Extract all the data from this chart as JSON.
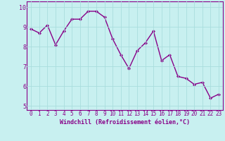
{
  "x": [
    0,
    1,
    2,
    3,
    4,
    5,
    6,
    7,
    8,
    9,
    10,
    11,
    12,
    13,
    14,
    15,
    16,
    17,
    18,
    19,
    20,
    21,
    22,
    23
  ],
  "y": [
    8.9,
    8.7,
    9.1,
    8.1,
    8.8,
    9.4,
    9.4,
    9.8,
    9.8,
    9.5,
    8.4,
    7.6,
    6.9,
    7.8,
    8.2,
    8.8,
    7.3,
    7.6,
    6.5,
    6.4,
    6.1,
    6.2,
    5.4,
    5.6
  ],
  "line_color": "#880088",
  "marker": "D",
  "marker_size": 2,
  "background_color": "#c8f0f0",
  "grid_color": "#aadddd",
  "xlabel": "Windchill (Refroidissement éolien,°C)",
  "xlabel_color": "#880088",
  "tick_color": "#880088",
  "spine_color": "#880088",
  "ylim": [
    4.8,
    10.3
  ],
  "xlim": [
    -0.5,
    23.5
  ],
  "yticks": [
    5,
    6,
    7,
    8,
    9,
    10
  ],
  "xticks": [
    0,
    1,
    2,
    3,
    4,
    5,
    6,
    7,
    8,
    9,
    10,
    11,
    12,
    13,
    14,
    15,
    16,
    17,
    18,
    19,
    20,
    21,
    22,
    23
  ],
  "tick_fontsize": 5.5,
  "xlabel_fontsize": 6,
  "linewidth": 1.0
}
